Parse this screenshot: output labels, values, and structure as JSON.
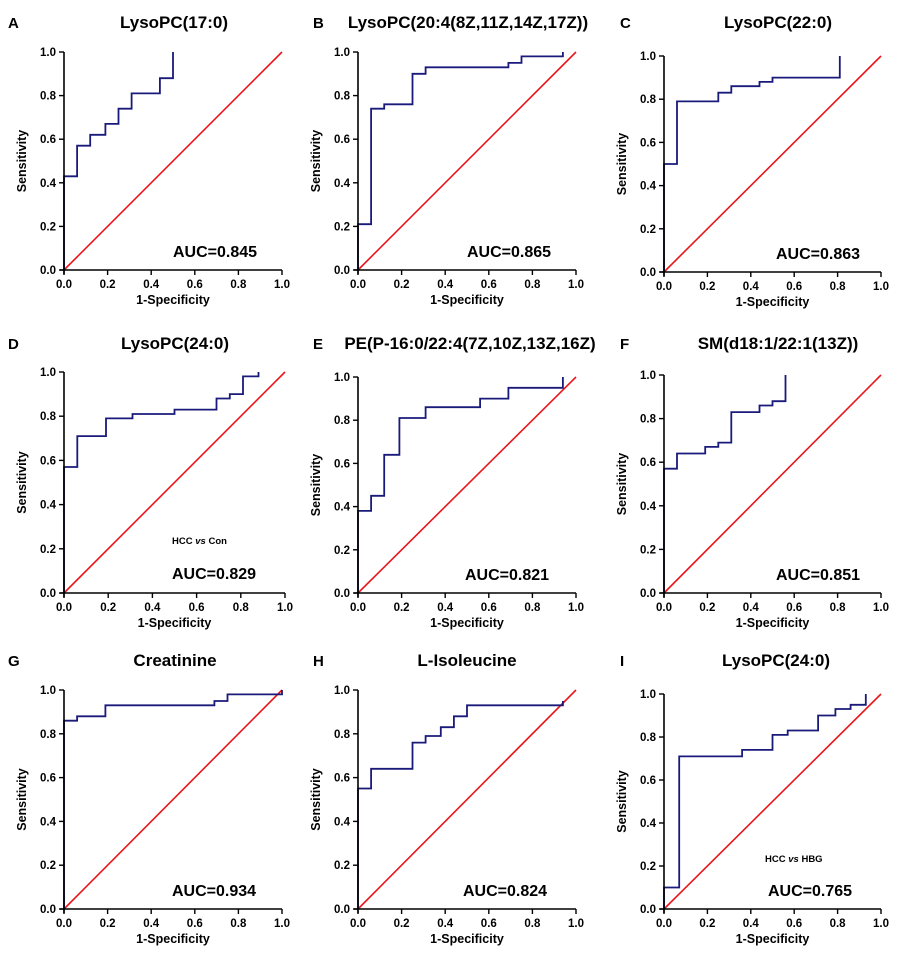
{
  "figure": {
    "x_label": "1-Specificity",
    "y_label": "Sensitivity",
    "curve_color": "#1a1a7a",
    "reference_color": "#e8161b",
    "axis_color": "#000000"
  },
  "chart_data": [
    {
      "panel": "A",
      "type": "line",
      "title": "LysoPC(17:0)",
      "xlabel": "1-Specificity",
      "ylabel": "Sensitivity",
      "xlim": [
        0,
        1
      ],
      "ylim": [
        0,
        1
      ],
      "xticks": [
        "0.0",
        "0.2",
        "0.4",
        "0.6",
        "0.8",
        "1.0"
      ],
      "yticks": [
        "0.0",
        "0.2",
        "0.4",
        "0.6",
        "0.8",
        "1.0"
      ],
      "auc_label": "AUC=0.845",
      "note": null,
      "series": [
        {
          "name": "ROC",
          "x": [
            0,
            0,
            0.06,
            0.06,
            0.12,
            0.12,
            0.19,
            0.19,
            0.25,
            0.25,
            0.31,
            0.31,
            0.44,
            0.44,
            0.5,
            0.5
          ],
          "y": [
            0,
            0.43,
            0.43,
            0.57,
            0.57,
            0.62,
            0.62,
            0.67,
            0.67,
            0.74,
            0.74,
            0.81,
            0.81,
            0.88,
            0.88,
            1.0
          ]
        },
        {
          "name": "reference",
          "x": [
            0,
            1
          ],
          "y": [
            0,
            1
          ]
        }
      ]
    },
    {
      "panel": "B",
      "type": "line",
      "title": "LysoPC(20:4(8Z,11Z,14Z,17Z))",
      "xlabel": "1-Specificity",
      "ylabel": "Sensitivity",
      "xlim": [
        0,
        1
      ],
      "ylim": [
        0,
        1
      ],
      "xticks": [
        "0.0",
        "0.2",
        "0.4",
        "0.6",
        "0.8",
        "1.0"
      ],
      "yticks": [
        "0.0",
        "0.2",
        "0.4",
        "0.6",
        "0.8",
        "1.0"
      ],
      "auc_label": "AUC=0.865",
      "note": null,
      "series": [
        {
          "name": "ROC",
          "x": [
            0,
            0,
            0.06,
            0.06,
            0.12,
            0.12,
            0.25,
            0.25,
            0.31,
            0.31,
            0.69,
            0.69,
            0.75,
            0.75,
            0.94,
            0.94
          ],
          "y": [
            0,
            0.21,
            0.21,
            0.74,
            0.74,
            0.76,
            0.76,
            0.9,
            0.9,
            0.93,
            0.93,
            0.95,
            0.95,
            0.98,
            0.98,
            1.0
          ]
        },
        {
          "name": "reference",
          "x": [
            0,
            1
          ],
          "y": [
            0,
            1
          ]
        }
      ]
    },
    {
      "panel": "C",
      "type": "line",
      "title": "LysoPC(22:0)",
      "xlabel": "1-Specificity",
      "ylabel": "Sensitivity",
      "xlim": [
        0,
        1
      ],
      "ylim": [
        0,
        1
      ],
      "xticks": [
        "0.0",
        "0.2",
        "0.4",
        "0.6",
        "0.8",
        "1.0"
      ],
      "yticks": [
        "0.0",
        "0.2",
        "0.4",
        "0.6",
        "0.8",
        "1.0"
      ],
      "auc_label": "AUC=0.863",
      "note": null,
      "series": [
        {
          "name": "ROC",
          "x": [
            0,
            0,
            0.06,
            0.06,
            0.25,
            0.25,
            0.31,
            0.31,
            0.44,
            0.44,
            0.5,
            0.5,
            0.81,
            0.81
          ],
          "y": [
            0,
            0.5,
            0.5,
            0.79,
            0.79,
            0.83,
            0.83,
            0.86,
            0.86,
            0.88,
            0.88,
            0.9,
            0.9,
            1.0
          ]
        },
        {
          "name": "reference",
          "x": [
            0,
            1
          ],
          "y": [
            0,
            1
          ]
        }
      ]
    },
    {
      "panel": "D",
      "type": "line",
      "title": "LysoPC(24:0)",
      "xlabel": "1-Specificity",
      "ylabel": "Sensitivity",
      "xlim": [
        0,
        1
      ],
      "ylim": [
        0,
        1
      ],
      "xticks": [
        "0.0",
        "0.2",
        "0.4",
        "0.6",
        "0.8",
        "1.0"
      ],
      "yticks": [
        "0.0",
        "0.2",
        "0.4",
        "0.6",
        "0.8",
        "1.0"
      ],
      "auc_label": "AUC=0.829",
      "note": {
        "a": "HCC",
        "vs": "vs",
        "b": "Con"
      },
      "series": [
        {
          "name": "ROC",
          "x": [
            0,
            0,
            0.06,
            0.06,
            0.19,
            0.19,
            0.31,
            0.31,
            0.5,
            0.5,
            0.69,
            0.69,
            0.75,
            0.75,
            0.81,
            0.81,
            0.88,
            0.88
          ],
          "y": [
            0,
            0.57,
            0.57,
            0.71,
            0.71,
            0.79,
            0.79,
            0.81,
            0.81,
            0.83,
            0.83,
            0.88,
            0.88,
            0.9,
            0.9,
            0.98,
            0.98,
            1.0
          ]
        },
        {
          "name": "reference",
          "x": [
            0,
            1
          ],
          "y": [
            0,
            1
          ]
        }
      ]
    },
    {
      "panel": "E",
      "type": "line",
      "title": "PE(P-16:0/22:4(7Z,10Z,13Z,16Z)",
      "xlabel": "1-Specificity",
      "ylabel": "Sensitivity",
      "xlim": [
        0,
        1
      ],
      "ylim": [
        0,
        1
      ],
      "xticks": [
        "0.0",
        "0.2",
        "0.4",
        "0.6",
        "0.8",
        "1.0"
      ],
      "yticks": [
        "0.0",
        "0.2",
        "0.4",
        "0.6",
        "0.8",
        "1.0"
      ],
      "auc_label": "AUC=0.821",
      "note": null,
      "series": [
        {
          "name": "ROC",
          "x": [
            0,
            0,
            0.06,
            0.06,
            0.12,
            0.12,
            0.19,
            0.19,
            0.31,
            0.31,
            0.56,
            0.56,
            0.69,
            0.69,
            0.94,
            0.94
          ],
          "y": [
            0,
            0.38,
            0.38,
            0.45,
            0.45,
            0.64,
            0.64,
            0.81,
            0.81,
            0.86,
            0.86,
            0.9,
            0.9,
            0.95,
            0.95,
            1.0
          ]
        },
        {
          "name": "reference",
          "x": [
            0,
            1
          ],
          "y": [
            0,
            1
          ]
        }
      ]
    },
    {
      "panel": "F",
      "type": "line",
      "title": "SM(d18:1/22:1(13Z))",
      "xlabel": "1-Specificity",
      "ylabel": "Sensitivity",
      "xlim": [
        0,
        1
      ],
      "ylim": [
        0,
        1
      ],
      "xticks": [
        "0.0",
        "0.2",
        "0.4",
        "0.6",
        "0.8",
        "1.0"
      ],
      "yticks": [
        "0.0",
        "0.2",
        "0.4",
        "0.6",
        "0.8",
        "1.0"
      ],
      "auc_label": "AUC=0.851",
      "note": null,
      "series": [
        {
          "name": "ROC",
          "x": [
            0,
            0,
            0.06,
            0.06,
            0.19,
            0.19,
            0.25,
            0.25,
            0.31,
            0.31,
            0.44,
            0.44,
            0.5,
            0.5,
            0.56,
            0.56
          ],
          "y": [
            0,
            0.57,
            0.57,
            0.64,
            0.64,
            0.67,
            0.67,
            0.69,
            0.69,
            0.83,
            0.83,
            0.86,
            0.86,
            0.88,
            0.88,
            1.0
          ]
        },
        {
          "name": "reference",
          "x": [
            0,
            1
          ],
          "y": [
            0,
            1
          ]
        }
      ]
    },
    {
      "panel": "G",
      "type": "line",
      "title": "Creatinine",
      "xlabel": "1-Specificity",
      "ylabel": "Sensitivity",
      "xlim": [
        0,
        1
      ],
      "ylim": [
        0,
        1
      ],
      "xticks": [
        "0.0",
        "0.2",
        "0.4",
        "0.6",
        "0.8",
        "1.0"
      ],
      "yticks": [
        "0.0",
        "0.2",
        "0.4",
        "0.6",
        "0.8",
        "1.0"
      ],
      "auc_label": "AUC=0.934",
      "note": null,
      "series": [
        {
          "name": "ROC",
          "x": [
            0,
            0,
            0.06,
            0.06,
            0.19,
            0.19,
            0.69,
            0.69,
            0.75,
            0.75,
            1.0,
            1.0
          ],
          "y": [
            0,
            0.86,
            0.86,
            0.88,
            0.88,
            0.93,
            0.93,
            0.95,
            0.95,
            0.98,
            0.98,
            1.0
          ]
        },
        {
          "name": "reference",
          "x": [
            0,
            1
          ],
          "y": [
            0,
            1
          ]
        }
      ]
    },
    {
      "panel": "H",
      "type": "line",
      "title": "L-Isoleucine",
      "xlabel": "1-Specificity",
      "ylabel": "Sensitivity",
      "xlim": [
        0,
        1
      ],
      "ylim": [
        0,
        1
      ],
      "xticks": [
        "0.0",
        "0.2",
        "0.4",
        "0.6",
        "0.8",
        "1.0"
      ],
      "yticks": [
        "0.0",
        "0.2",
        "0.4",
        "0.6",
        "0.8",
        "1.0"
      ],
      "auc_label": "AUC=0.824",
      "note": null,
      "series": [
        {
          "name": "ROC",
          "x": [
            0,
            0,
            0.06,
            0.06,
            0.25,
            0.25,
            0.31,
            0.31,
            0.38,
            0.38,
            0.44,
            0.44,
            0.5,
            0.5,
            0.94,
            0.94
          ],
          "y": [
            0,
            0.55,
            0.55,
            0.64,
            0.64,
            0.76,
            0.76,
            0.79,
            0.79,
            0.83,
            0.83,
            0.88,
            0.88,
            0.93,
            0.93,
            0.95
          ]
        },
        {
          "name": "reference",
          "x": [
            0,
            1
          ],
          "y": [
            0,
            1
          ]
        }
      ]
    },
    {
      "panel": "I",
      "type": "line",
      "title": "LysoPC(24:0)",
      "xlabel": "1-Specificity",
      "ylabel": "Sensitivity",
      "xlim": [
        0,
        1
      ],
      "ylim": [
        0,
        1
      ],
      "xticks": [
        "0.0",
        "0.2",
        "0.4",
        "0.6",
        "0.8",
        "1.0"
      ],
      "yticks": [
        "0.0",
        "0.2",
        "0.4",
        "0.6",
        "0.8",
        "1.0"
      ],
      "auc_label": "AUC=0.765",
      "note": {
        "a": "HCC",
        "vs": "vs",
        "b": "HBG"
      },
      "series": [
        {
          "name": "ROC",
          "x": [
            0,
            0,
            0.07,
            0.07,
            0.36,
            0.36,
            0.5,
            0.5,
            0.57,
            0.57,
            0.71,
            0.71,
            0.79,
            0.79,
            0.86,
            0.86,
            0.93,
            0.93
          ],
          "y": [
            0,
            0.1,
            0.1,
            0.71,
            0.71,
            0.74,
            0.74,
            0.81,
            0.81,
            0.83,
            0.83,
            0.9,
            0.9,
            0.93,
            0.93,
            0.95,
            0.95,
            1.0
          ]
        },
        {
          "name": "reference",
          "x": [
            0,
            1
          ],
          "y": [
            0,
            1
          ]
        }
      ]
    }
  ]
}
